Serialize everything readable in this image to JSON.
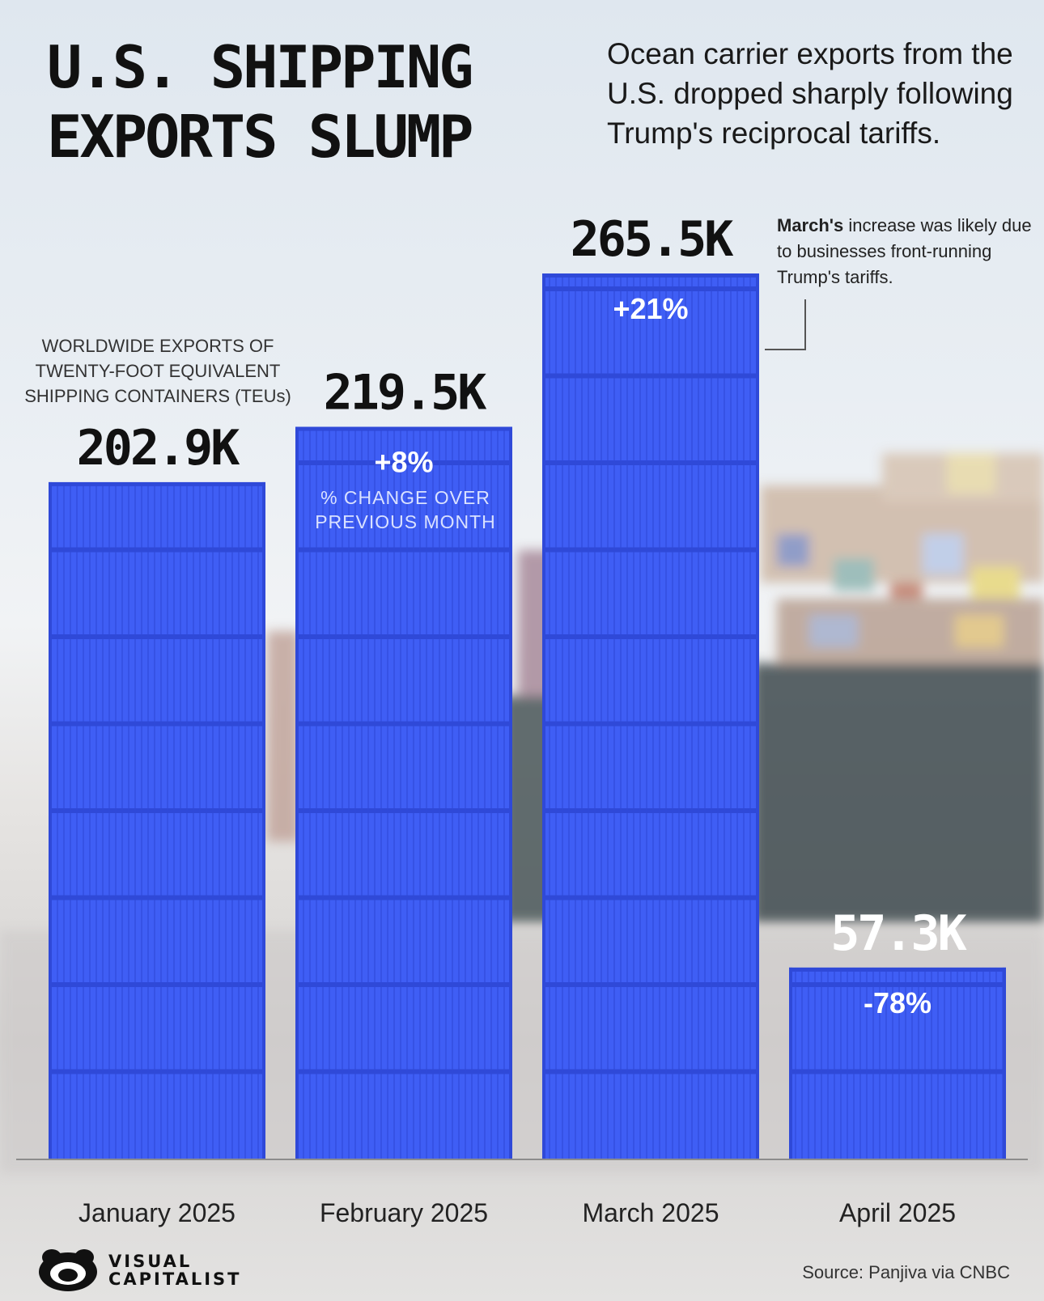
{
  "header": {
    "title": "U.S. SHIPPING\nEXPORTS SLUMP",
    "subtitle": "Ocean carrier exports from the U.S. dropped sharply following Trump's reciprocal tariffs."
  },
  "annotations": {
    "axis_caption": "WORLDWIDE EXPORTS OF\nTWENTY-FOOT EQUIVALENT\nSHIPPING CONTAINERS (TEUs)",
    "pct_change_caption": "% CHANGE OVER\nPREVIOUS MONTH",
    "march_note_bold": "March's",
    "march_note_rest": " increase was likely due to businesses front-running Trump's tariffs."
  },
  "chart_data": {
    "type": "bar",
    "categories": [
      "January 2025",
      "February 2025",
      "March 2025",
      "April 2025"
    ],
    "values": [
      202.9,
      219.5,
      265.5,
      57.3
    ],
    "value_labels": [
      "202.9K",
      "219.5K",
      "265.5K",
      "57.3K"
    ],
    "pct_change_labels": [
      "",
      "+8%",
      "+21%",
      "-78%"
    ],
    "unit": "K TEUs",
    "ylim": [
      0,
      265.5
    ],
    "grid": false,
    "legend": "none"
  },
  "colors": {
    "bar": "#3f5ef5",
    "bar_dark": "#2f49d8",
    "value_label_dark": "#111111",
    "value_label_light": "#ffffff"
  },
  "footer": {
    "source": "Source: Panjiva via CNBC",
    "logo_text": "VISUAL\nCAPITALIST",
    "logo_icon": "visual-capitalist-logo-icon"
  }
}
